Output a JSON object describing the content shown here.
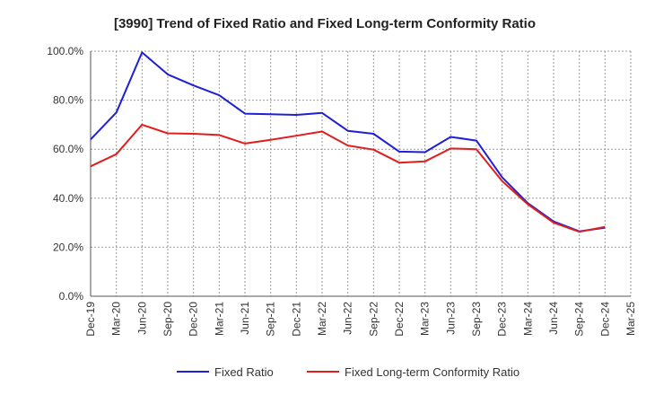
{
  "chart_data": {
    "type": "line",
    "title": "[3990]  Trend of Fixed Ratio and Fixed Long-term Conformity Ratio",
    "xlabel": "",
    "ylabel": "",
    "ylim": [
      0,
      100
    ],
    "y_ticks": [
      "0.0%",
      "20.0%",
      "40.0%",
      "60.0%",
      "80.0%",
      "100.0%"
    ],
    "y_tick_values": [
      0,
      20,
      40,
      60,
      80,
      100
    ],
    "x_tick_labels": [
      "Dec-19",
      "Mar-20",
      "Jun-20",
      "Sep-20",
      "Dec-20",
      "Mar-21",
      "Jun-21",
      "Sep-21",
      "Dec-21",
      "Mar-22",
      "Jun-22",
      "Sep-22",
      "Dec-22",
      "Mar-23",
      "Jun-23",
      "Sep-23",
      "Dec-23",
      "Mar-24",
      "Jun-24",
      "Sep-24",
      "Dec-24",
      "Mar-25"
    ],
    "x": [
      "Dec-19",
      "Mar-20",
      "Jun-20",
      "Sep-20",
      "Dec-20",
      "Mar-21",
      "Jun-21",
      "Sep-21",
      "Dec-21",
      "Mar-22",
      "Jun-22",
      "Sep-22",
      "Dec-22",
      "Mar-23",
      "Jun-23",
      "Sep-23",
      "Dec-23",
      "Mar-24",
      "Jun-24",
      "Sep-24",
      "Dec-24"
    ],
    "grid": true,
    "legend_position": "bottom",
    "series": [
      {
        "name": "Fixed Ratio",
        "color": "#1f1fd6",
        "values": [
          64.0,
          75.0,
          99.5,
          90.5,
          86.0,
          82.0,
          74.5,
          74.3,
          74.0,
          74.8,
          67.5,
          66.3,
          59.0,
          58.8,
          65.0,
          63.5,
          48.5,
          38.0,
          30.5,
          26.5,
          28.0
        ]
      },
      {
        "name": "Fixed Long-term Conformity Ratio",
        "color": "#e01e1e",
        "values": [
          53.0,
          58.0,
          70.0,
          66.5,
          66.3,
          65.8,
          62.3,
          63.8,
          65.5,
          67.2,
          61.5,
          59.8,
          54.5,
          55.0,
          60.3,
          60.0,
          47.0,
          37.5,
          30.0,
          26.3,
          28.3
        ]
      }
    ]
  }
}
